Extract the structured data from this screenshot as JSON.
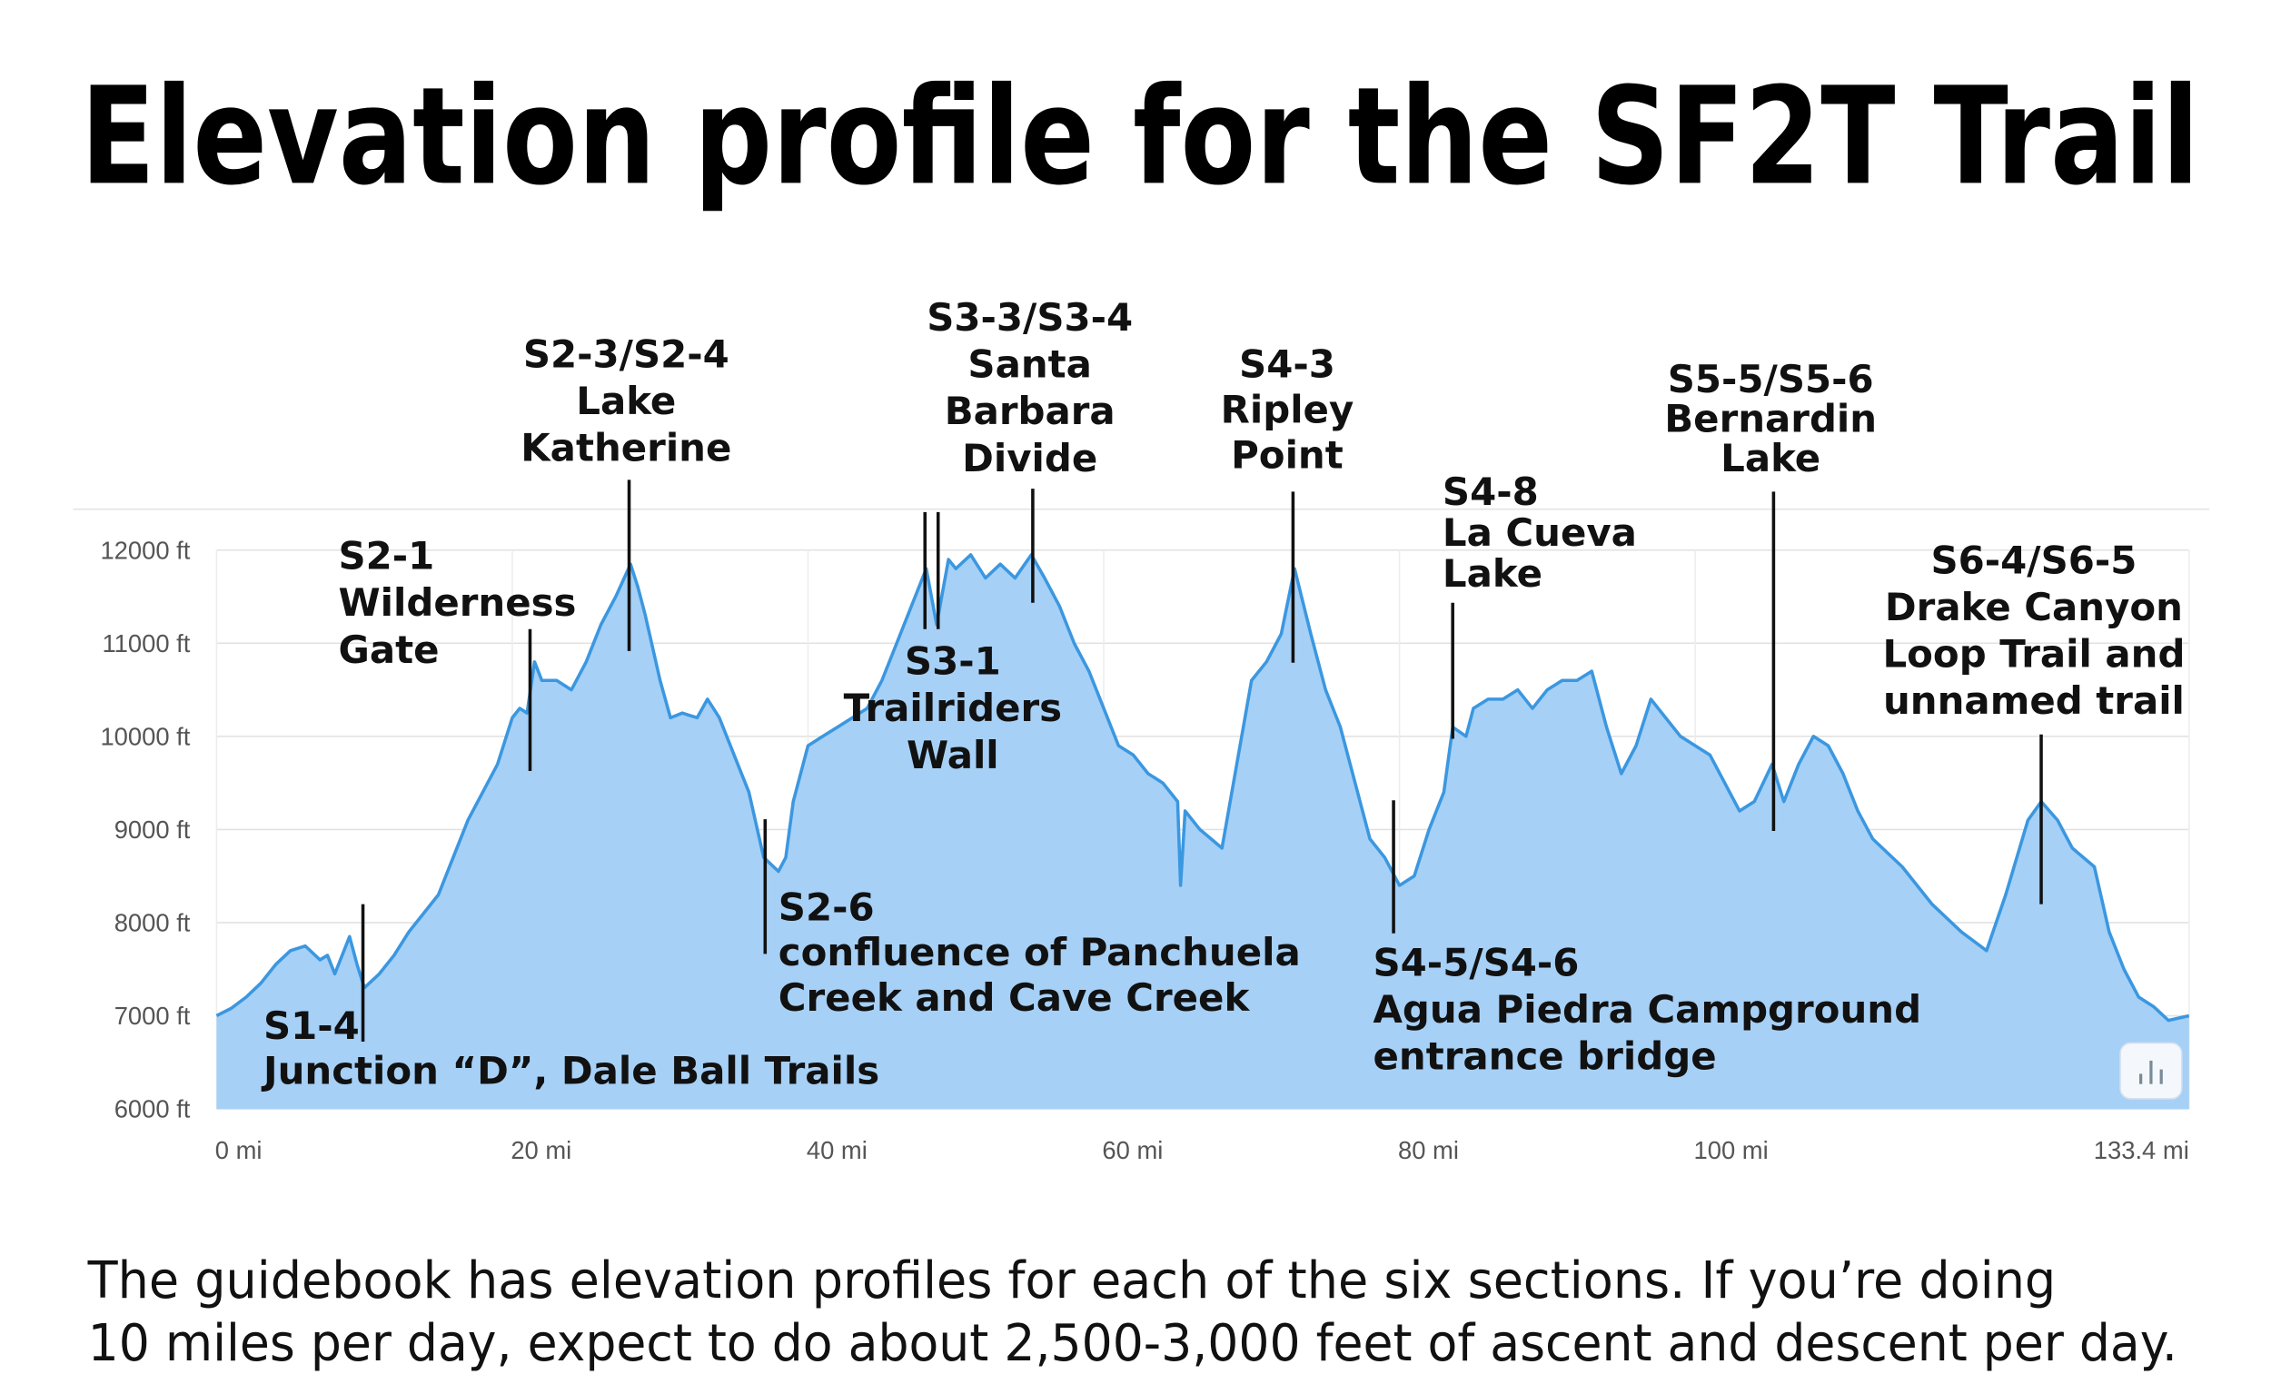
{
  "chart_data": {
    "type": "area",
    "title": "Elevation profile for the SF2T Trail",
    "color": "#a6d0f6",
    "line_color": "#3b97e0",
    "grid": true,
    "xlim": [
      0,
      133.4
    ],
    "ylim": [
      6000,
      12000
    ],
    "xticks": [
      {
        "value": 0,
        "label": "0 mi"
      },
      {
        "value": 20,
        "label": "20 mi"
      },
      {
        "value": 40,
        "label": "40 mi"
      },
      {
        "value": 60,
        "label": "60 mi"
      },
      {
        "value": 80,
        "label": "80 mi"
      },
      {
        "value": 100,
        "label": "100 mi"
      },
      {
        "value": 133.4,
        "label": "133.4 mi"
      }
    ],
    "yticks": [
      {
        "value": 6000,
        "label": "6000 ft"
      },
      {
        "value": 7000,
        "label": "7000 ft"
      },
      {
        "value": 8000,
        "label": "8000 ft"
      },
      {
        "value": 9000,
        "label": "9000 ft"
      },
      {
        "value": 10000,
        "label": "10000 ft"
      },
      {
        "value": 11000,
        "label": "11000 ft"
      },
      {
        "value": 12000,
        "label": "12000 ft"
      }
    ],
    "x": [
      0,
      1,
      2,
      3,
      4,
      5,
      6,
      7,
      7.5,
      8,
      9,
      9.5,
      10,
      11,
      12,
      13,
      14,
      15,
      16,
      17,
      18,
      19,
      20,
      20.5,
      21,
      21.5,
      22,
      23,
      24,
      25,
      26,
      27,
      28,
      28.5,
      29,
      30,
      30.7,
      31.5,
      32.5,
      33.2,
      34,
      35,
      36,
      37,
      38,
      38.5,
      39,
      40,
      41,
      42,
      43,
      44,
      45,
      46,
      47,
      48,
      48.7,
      49.5,
      50,
      51,
      52,
      53,
      54,
      55.1,
      56,
      57,
      58,
      59,
      60,
      61,
      62,
      63,
      64,
      65,
      65.2,
      65.5,
      66.5,
      68,
      69,
      70,
      71,
      72,
      72.9,
      74,
      75,
      76,
      77,
      78,
      79,
      80,
      81,
      82,
      83,
      83.6,
      84.5,
      85,
      86,
      87,
      88,
      89,
      90,
      91,
      92,
      93,
      94,
      95,
      96,
      97,
      98,
      99,
      100,
      101,
      102,
      103,
      104,
      105.2,
      106,
      107,
      108,
      109,
      110,
      111,
      112,
      114,
      116,
      118,
      119.7,
      121,
      122.5,
      123.4,
      124.5,
      125.5,
      127,
      128,
      129,
      130,
      131,
      132,
      133.4
    ],
    "values": [
      7000,
      7080,
      7200,
      7350,
      7550,
      7700,
      7750,
      7600,
      7650,
      7450,
      7850,
      7550,
      7300,
      7450,
      7650,
      7900,
      8100,
      8300,
      8700,
      9100,
      9400,
      9700,
      10200,
      10300,
      10250,
      10800,
      10600,
      10600,
      10500,
      10800,
      11200,
      11500,
      11850,
      11600,
      11300,
      10600,
      10200,
      10250,
      10200,
      10400,
      10200,
      9800,
      9400,
      8700,
      8550,
      8700,
      9300,
      9900,
      10000,
      10100,
      10200,
      10300,
      10600,
      11000,
      11400,
      11800,
      11200,
      11900,
      11800,
      11950,
      11700,
      11850,
      11700,
      11950,
      11700,
      11400,
      11000,
      10700,
      10300,
      9900,
      9800,
      9600,
      9500,
      9300,
      8400,
      9200,
      9000,
      8800,
      9700,
      10600,
      10800,
      11100,
      11800,
      11100,
      10500,
      10100,
      9500,
      8900,
      8700,
      8400,
      8500,
      9000,
      9400,
      10100,
      10000,
      10300,
      10400,
      10400,
      10500,
      10300,
      10500,
      10600,
      10600,
      10700,
      10100,
      9600,
      9900,
      10400,
      10200,
      10000,
      9900,
      9800,
      9500,
      9200,
      9300,
      9700,
      9300,
      9700,
      10000,
      9900,
      9600,
      9200,
      8900,
      8600,
      8200,
      7900,
      7700,
      8300,
      9100,
      9300,
      9100,
      8800,
      8600,
      7900,
      7500,
      7200,
      7100,
      6950,
      7000
    ],
    "annotations": [
      {
        "x": 9.9,
        "text": [
          "S1-4",
          "Junction “D”, Dale Ball Trails"
        ]
      },
      {
        "x": 21.2,
        "text": [
          "S2-1",
          "Wilderness",
          "Gate"
        ]
      },
      {
        "x": 27.9,
        "text": [
          "S2-3/S2-4",
          "Lake",
          "Katherine"
        ]
      },
      {
        "x": 37.1,
        "text": [
          "S2-6",
          "confluence of Panchuela",
          "Creek and Cave Creek"
        ]
      },
      {
        "x": 48.8,
        "text": [
          "S3-1",
          "Trailriders",
          "Wall"
        ]
      },
      {
        "x": 55.2,
        "text": [
          "S3-3/S3-4",
          "Santa",
          "Barbara",
          "Divide"
        ]
      },
      {
        "x": 72.8,
        "text": [
          "S4-3",
          "Ripley",
          "Point"
        ]
      },
      {
        "x": 79.6,
        "text": [
          "S4-5/S4-6",
          "Agua Piedra Campground",
          "entrance bridge"
        ]
      },
      {
        "x": 83.6,
        "text": [
          "S4-8",
          "La Cueva",
          "Lake"
        ]
      },
      {
        "x": 105.3,
        "text": [
          "S5-5/S5-6",
          "Bernardin",
          "Lake"
        ]
      },
      {
        "x": 123.4,
        "text": [
          "S6-4/S6-5",
          "Drake Canyon",
          "Loop Trail and",
          "unnamed trail"
        ]
      }
    ]
  },
  "caption": [
    "The guidebook has elevation profiles for each of the six sections. If you’re doing",
    "10 miles per day, expect to do about 2,500-3,000 feet of ascent and descent per day."
  ]
}
